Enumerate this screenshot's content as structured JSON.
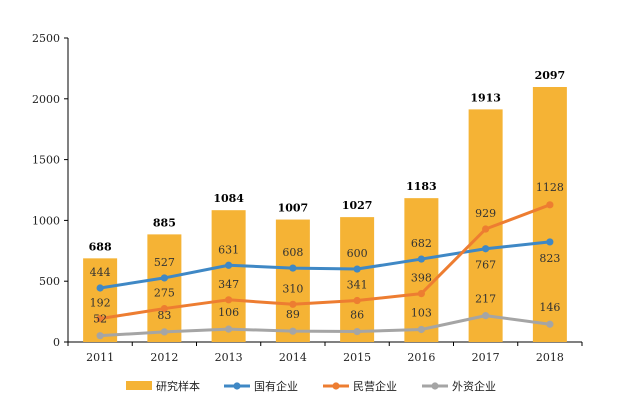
{
  "chart_data": {
    "type": "bar+line",
    "categories": [
      "2011",
      "2012",
      "2013",
      "2014",
      "2015",
      "2016",
      "2017",
      "2018"
    ],
    "ylim": [
      0,
      2500
    ],
    "yticks": [
      "0",
      "500",
      "1000",
      "1500",
      "2000",
      "2500"
    ],
    "legend_position": "bottom",
    "bar_series": {
      "name": "研究样本",
      "color": "#F5B335",
      "values": [
        688,
        885,
        1084,
        1007,
        1027,
        1183,
        1913,
        2097
      ],
      "labels": [
        "688",
        "885",
        "1084",
        "1007",
        "1027",
        "1183",
        "1913",
        "2097"
      ]
    },
    "line_series": [
      {
        "name": "国有企业",
        "color": "#3F88C5",
        "values": [
          444,
          527,
          631,
          608,
          600,
          682,
          767,
          823
        ],
        "labels": [
          "444",
          "527",
          "631",
          "608",
          "600",
          "682",
          "767",
          "823"
        ]
      },
      {
        "name": "民营企业",
        "color": "#ED7D31",
        "values": [
          192,
          275,
          347,
          310,
          341,
          398,
          929,
          1128
        ],
        "labels": [
          "192",
          "275",
          "347",
          "310",
          "341",
          "398",
          "929",
          "1128"
        ]
      },
      {
        "name": "外资企业",
        "color": "#A5A5A5",
        "values": [
          52,
          83,
          106,
          89,
          86,
          103,
          217,
          146
        ],
        "labels": [
          "52",
          "83",
          "106",
          "89",
          "86",
          "103",
          "217",
          "146"
        ]
      }
    ]
  }
}
